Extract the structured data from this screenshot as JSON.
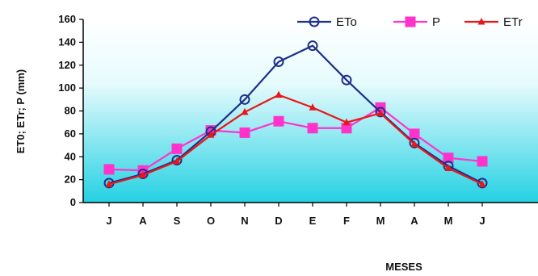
{
  "chart_data": {
    "type": "line",
    "xlabel": "MESES",
    "ylabel": "ET0; ETr; P (mm)",
    "categories": [
      "J",
      "A",
      "S",
      "O",
      "N",
      "D",
      "E",
      "F",
      "M",
      "A",
      "M",
      "J"
    ],
    "ylim": [
      0,
      160
    ],
    "yticks": [
      0,
      20,
      40,
      60,
      80,
      100,
      120,
      140,
      160
    ],
    "grid": false,
    "legend_position": "top-right",
    "background": "gradient white to cyan",
    "series": [
      {
        "name": "ETo",
        "color": "#1f2f8a",
        "marker": "open-circle",
        "values": [
          17,
          25,
          37,
          62,
          90,
          123,
          137,
          107,
          79,
          52,
          32,
          17
        ]
      },
      {
        "name": "P",
        "color": "#ff33cc",
        "marker": "square",
        "values": [
          29,
          28,
          47,
          63,
          61,
          71,
          65,
          65,
          83,
          60,
          39,
          36
        ]
      },
      {
        "name": "ETr",
        "color": "#e81818",
        "marker": "triangle",
        "values": [
          16,
          24,
          36,
          59,
          79,
          94,
          83,
          70,
          78,
          51,
          30,
          16
        ]
      }
    ]
  }
}
